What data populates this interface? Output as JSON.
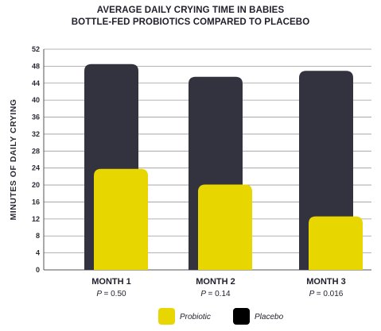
{
  "chart_data": {
    "type": "bar",
    "title": "AVERAGE DAILY CRYING TIME IN BABIES",
    "subtitle": "BOTTLE-FED PROBIOTICS COMPARED TO PLACEBO",
    "ylabel": "MINUTES OF DAILY CRYING",
    "ylim": [
      0,
      52
    ],
    "yticks": [
      0,
      4,
      8,
      12,
      16,
      20,
      24,
      28,
      32,
      36,
      40,
      44,
      48,
      52
    ],
    "grid": true,
    "categories": [
      "MONTH 1",
      "MONTH 2",
      "MONTH 3"
    ],
    "p_values": [
      {
        "label": "P",
        "value": "= 0.50"
      },
      {
        "label": "P",
        "value": "= 0.14"
      },
      {
        "label": "P",
        "value": "= 0.016"
      }
    ],
    "series": [
      {
        "name": "Placebo",
        "color": "#33323f",
        "values": [
          48.5,
          45.5,
          46.9
        ]
      },
      {
        "name": "Probiotic",
        "color": "#e8d600",
        "values": [
          23.8,
          20.1,
          12.6
        ]
      }
    ],
    "legend_position": "bottom-center",
    "legend": [
      {
        "name": "Probiotic",
        "color": "#e8d600"
      },
      {
        "name": "Placebo",
        "color": "#000000"
      }
    ]
  }
}
